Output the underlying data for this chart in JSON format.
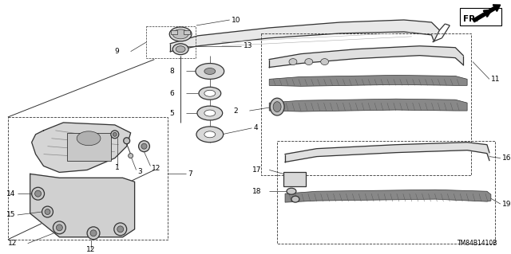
{
  "bg_color": "#ffffff",
  "part_number": "TM84B1410B",
  "line_color": "#333333",
  "gray_fill": "#cccccc",
  "dark_fill": "#555555",
  "label_fs": 6.5
}
